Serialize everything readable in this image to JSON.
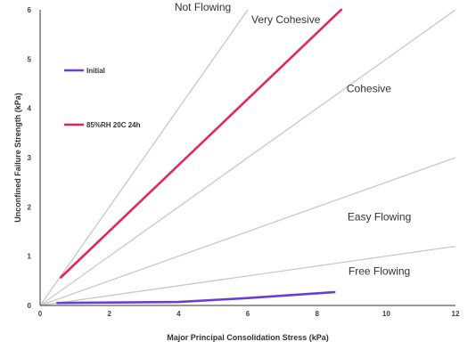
{
  "chart_data": {
    "type": "line",
    "title": "",
    "xlabel": "Major Principal Consolidation Stress (kPa)",
    "ylabel": "Unconfined Failure Strength (kPa)",
    "xlim": [
      0,
      12
    ],
    "ylim": [
      0,
      6
    ],
    "x_ticks": [
      "0",
      "2",
      "4",
      "6",
      "8",
      "10",
      "12"
    ],
    "y_ticks": [
      "0",
      "1",
      "2",
      "3",
      "4",
      "5",
      "6"
    ],
    "grid": false,
    "legend_position": "left",
    "reference_lines": [
      {
        "slope": 1.0,
        "color": "#c8c8c8"
      },
      {
        "slope": 0.5,
        "color": "#c8c8c8"
      },
      {
        "slope": 0.25,
        "color": "#c8c8c8"
      },
      {
        "slope": 0.1,
        "color": "#c8c8c8"
      }
    ],
    "region_labels": [
      {
        "text": "Not Flowing",
        "x": 4.7,
        "y": 6.05
      },
      {
        "text": "Very Cohesive",
        "x": 7.1,
        "y": 5.8
      },
      {
        "text": "Cohesive",
        "x": 9.5,
        "y": 4.4
      },
      {
        "text": "Easy Flowing",
        "x": 9.8,
        "y": 1.8
      },
      {
        "text": "Free Flowing",
        "x": 9.8,
        "y": 0.7
      }
    ],
    "series": [
      {
        "name": "Initial",
        "color": "#6a3fd0",
        "points": [
          [
            0.5,
            0.05
          ],
          [
            2,
            0.06
          ],
          [
            4,
            0.07
          ],
          [
            6,
            0.15
          ],
          [
            8.5,
            0.27
          ]
        ]
      },
      {
        "name": "85%RH 20C 24h",
        "color": "#e8245f",
        "points": [
          [
            0.6,
            0.57
          ],
          [
            8.7,
            6.0
          ]
        ]
      }
    ]
  }
}
